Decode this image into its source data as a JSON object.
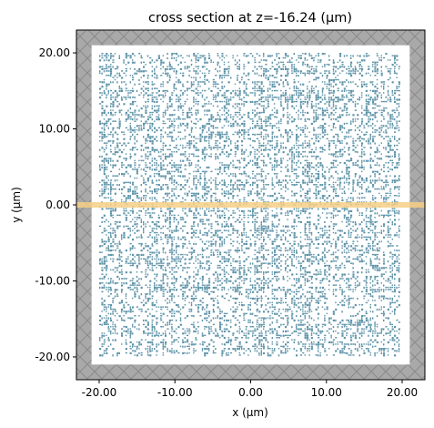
{
  "chart_data": {
    "type": "heatmap",
    "title": "cross section at z=-16.24 (µm)",
    "xlabel": "x (µm)",
    "ylabel": "y (µm)",
    "xlim": [
      -23.0,
      23.0
    ],
    "ylim": [
      -23.0,
      23.0
    ],
    "x_ticks": [
      -20,
      -10,
      0,
      10,
      20
    ],
    "x_tick_labels": [
      "-20.00",
      "-10.00",
      "0.00",
      "10.00",
      "20.00"
    ],
    "y_ticks": [
      -20,
      -10,
      0,
      10,
      20
    ],
    "y_tick_labels": [
      "-20.00",
      "-10.00",
      "0.00",
      "10.00",
      "20.00"
    ],
    "simulation_domain": {
      "x": [
        -23.0,
        23.0
      ],
      "y": [
        -23.0,
        23.0
      ]
    },
    "pml_boundary": {
      "x": [
        -21.0,
        21.0
      ],
      "y": [
        -21.0,
        21.0
      ]
    },
    "structure_region": {
      "x": [
        -20.0,
        20.0
      ],
      "y": [
        -20.0,
        20.0
      ]
    },
    "source_plane": {
      "y": 0.0,
      "x": [
        -23.0,
        23.0
      ]
    },
    "grid": false,
    "colors": {
      "pml": "#a9a9a9",
      "pml_hatch": "#8a8a8a",
      "domain": "#ffffff",
      "structure": "#5d93a8",
      "source": "#f6cf86"
    }
  }
}
